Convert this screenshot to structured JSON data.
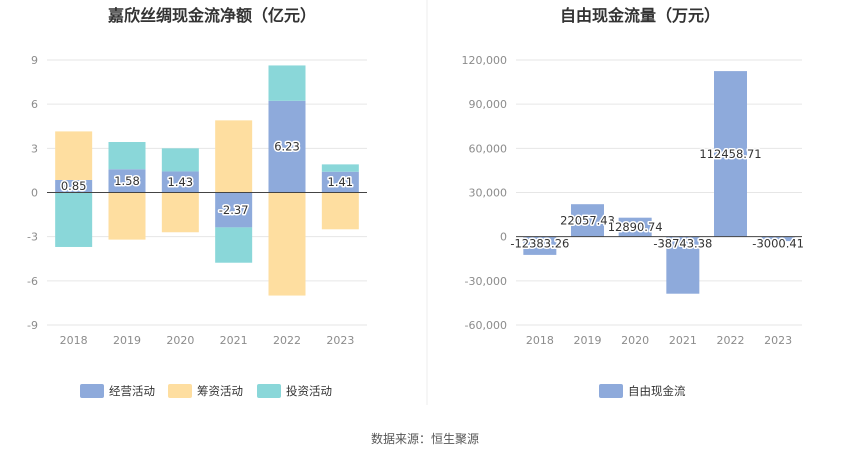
{
  "colors": {
    "operating": "#8eaadb",
    "financing": "#fedea0",
    "investing": "#8ad7d9",
    "free_cash": "#8eaadb",
    "grid": "#e6e6e6",
    "zero_line": "#444444",
    "tick_text": "#8c8c8c",
    "title_text": "#333333",
    "divider": "#eeeeee"
  },
  "footer": {
    "source": "数据来源：恒生聚源"
  },
  "chart_data": [
    {
      "type": "bar",
      "stacked": true,
      "title": "嘉欣丝绸现金流净额（亿元）",
      "categories": [
        "2018",
        "2019",
        "2020",
        "2021",
        "2022",
        "2023"
      ],
      "ylim": [
        -9,
        9
      ],
      "yticks": [
        "9",
        "6",
        "3",
        "0",
        "-3",
        "-6",
        "-9"
      ],
      "ytick_values": [
        9,
        6,
        3,
        0,
        -3,
        -6,
        -9
      ],
      "grid": true,
      "legend_position": "bottom",
      "series": [
        {
          "name": "经营活动",
          "key": "operating",
          "values": [
            0.85,
            1.58,
            1.43,
            -2.37,
            6.23,
            1.41
          ],
          "labels": [
            "0.85",
            "1.58",
            "1.43",
            "-2.37",
            "6.23",
            "1.41"
          ]
        },
        {
          "name": "筹资活动",
          "key": "financing",
          "values": [
            3.3,
            -3.2,
            -2.7,
            4.9,
            -7.0,
            -2.5
          ]
        },
        {
          "name": "投资活动",
          "key": "investing",
          "values": [
            -3.7,
            1.85,
            1.57,
            -2.4,
            2.4,
            0.5
          ]
        }
      ]
    },
    {
      "type": "bar",
      "title": "自由现金流量（万元）",
      "categories": [
        "2018",
        "2019",
        "2020",
        "2021",
        "2022",
        "2023"
      ],
      "ylim": [
        -60000,
        120000
      ],
      "yticks": [
        "120,000",
        "90,000",
        "60,000",
        "30,000",
        "0",
        "-30,000",
        "-60,000"
      ],
      "ytick_values": [
        120000,
        90000,
        60000,
        30000,
        0,
        -30000,
        -60000
      ],
      "grid": true,
      "legend_position": "bottom",
      "series": [
        {
          "name": "自由现金流",
          "key": "free_cash",
          "values": [
            -12383.26,
            22057.43,
            12890.74,
            -38743.38,
            112458.71,
            -3000.41
          ],
          "labels": [
            "-12383.26",
            "22057.43",
            "12890.74",
            "-38743.38",
            "112458.71",
            "-3000.41"
          ]
        }
      ]
    }
  ]
}
